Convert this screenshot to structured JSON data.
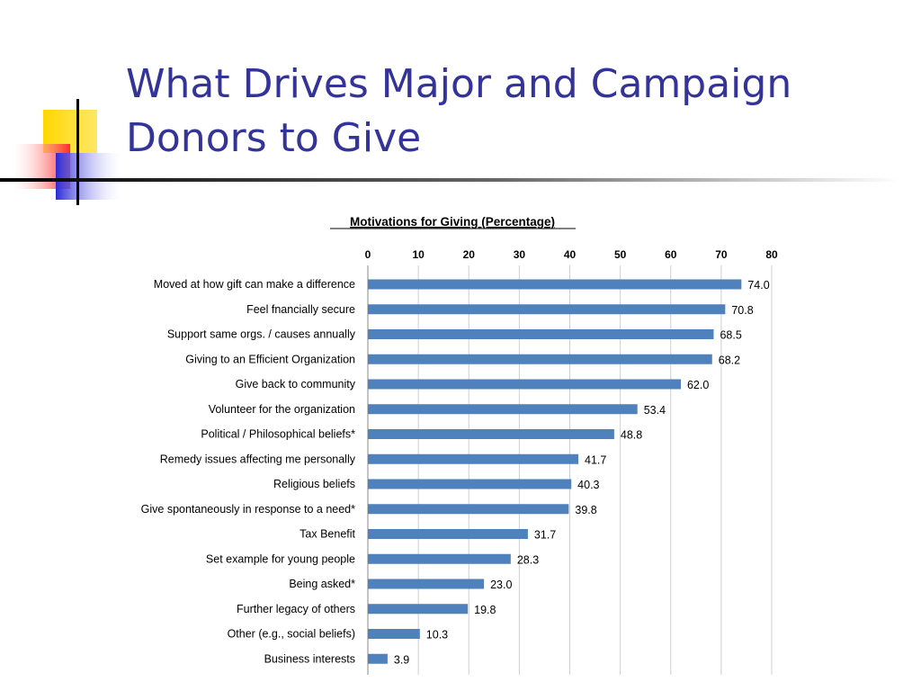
{
  "slide": {
    "title_line1": "What Drives Major and Campaign",
    "title_line2": "Donors to Give",
    "title_color": "#333399",
    "logo_colors": {
      "yellow": "#ffd700",
      "red": "#ff3333",
      "blue": "#2a2ad8",
      "line": "#000000"
    }
  },
  "chart_data": {
    "type": "bar",
    "orientation": "horizontal",
    "title": "Motivations for Giving (Percentage)",
    "xlim": [
      0,
      80
    ],
    "xticks": [
      0,
      10,
      20,
      30,
      40,
      50,
      60,
      70,
      80
    ],
    "xaxis_position": "top",
    "grid": true,
    "bar_color": "#4f81bd",
    "categories": [
      "Moved at how gift can make a difference",
      "Feel fnancially secure",
      "Support same orgs. / causes annually",
      "Giving to an Efficient Organization",
      "Give back to community",
      "Volunteer for the organization",
      "Political / Philosophical beliefs*",
      "Remedy issues affecting me personally",
      "Religious beliefs",
      "Give spontaneously in response to a need*",
      "Tax Benefit",
      "Set example for young people",
      "Being asked*",
      "Further legacy of others",
      "Other (e.g., social beliefs)",
      "Business interests"
    ],
    "values": [
      74.0,
      70.8,
      68.5,
      68.2,
      62.0,
      53.4,
      48.8,
      41.7,
      40.3,
      39.8,
      31.7,
      28.3,
      23.0,
      19.8,
      10.3,
      3.9
    ],
    "value_labels": [
      "74.0",
      "70.8",
      "68.5",
      "68.2",
      "62.0",
      "53.4",
      "48.8",
      "41.7",
      "40.3",
      "39.8",
      "31.7",
      "28.3",
      "23.0",
      "19.8",
      "10.3",
      "3.9"
    ]
  }
}
